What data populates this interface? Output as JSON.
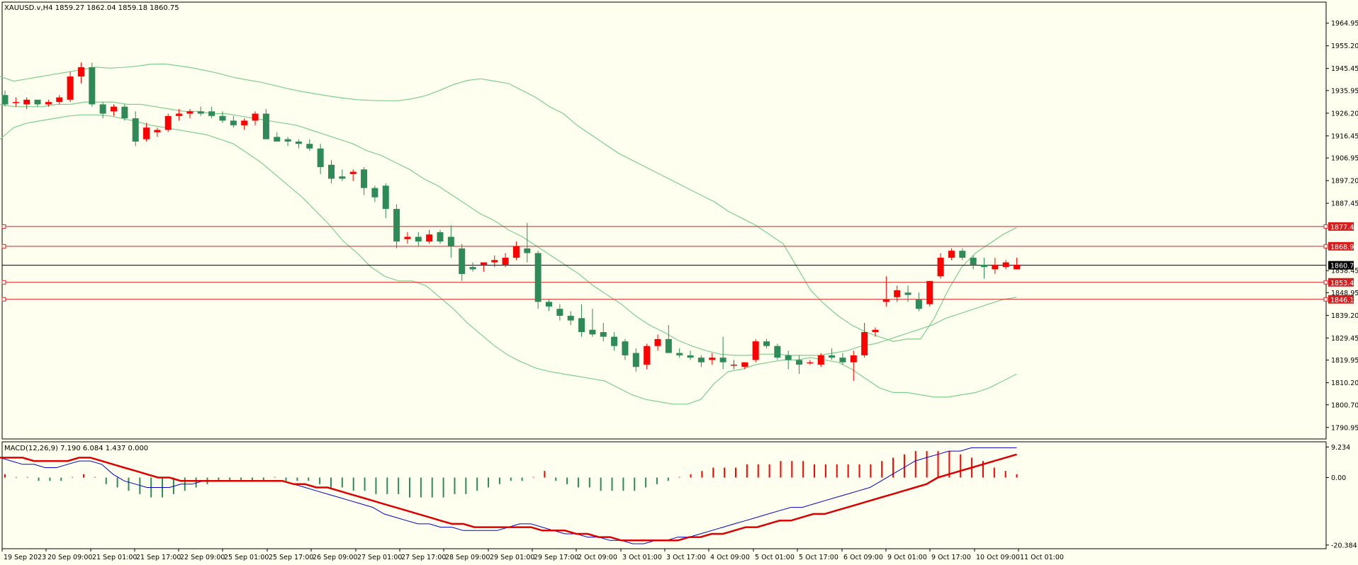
{
  "chart_data": [
    {
      "type": "candlestick",
      "title": "XAUUSD.v,H4  1859.27 1862.04 1859.18 1860.75",
      "ylim": [
        1786,
        1974
      ],
      "y_ticks": [
        "1964.95",
        "1955.20",
        "1945.45",
        "1935.95",
        "1926.20",
        "1916.45",
        "1906.95",
        "1897.20",
        "1887.45",
        "1858.45",
        "1848.95",
        "1839.20",
        "1829.45",
        "1819.95",
        "1810.20",
        "1800.70",
        "1790.95"
      ],
      "x_ticks": [
        "19 Sep 2023",
        "20 Sep 09:00",
        "21 Sep 01:00",
        "21 Sep 17:00",
        "22 Sep 09:00",
        "25 Sep 01:00",
        "25 Sep 17:00",
        "26 Sep 09:00",
        "27 Sep 01:00",
        "27 Sep 17:00",
        "28 Sep 09:00",
        "29 Sep 01:00",
        "29 Sep 17:00",
        "2 Oct 09:00",
        "3 Oct 01:00",
        "3 Oct 17:00",
        "4 Oct 09:00",
        "5 Oct 01:00",
        "5 Oct 17:00",
        "6 Oct 09:00",
        "9 Oct 01:00",
        "9 Oct 17:00",
        "10 Oct 09:00",
        "11 Oct 01:00"
      ],
      "current_price": "1860.75",
      "levels": [
        "1877.44",
        "1868.93",
        "1853.41",
        "1846.10"
      ],
      "colors": {
        "up": "#ff0000",
        "down": "#2e8b57",
        "bands": "#7ccf8e",
        "level": "#d62020",
        "price_line": "#000000"
      },
      "candles": [
        [
          1934,
          1936,
          1929,
          1930
        ],
        [
          1931,
          1933,
          1929,
          1931
        ],
        [
          1930,
          1933,
          1928,
          1932
        ],
        [
          1932,
          1932,
          1929,
          1930
        ],
        [
          1930,
          1932,
          1929,
          1931
        ],
        [
          1931,
          1934,
          1930,
          1933
        ],
        [
          1932,
          1944,
          1931,
          1942
        ],
        [
          1942,
          1948,
          1939,
          1946
        ],
        [
          1946,
          1948,
          1929,
          1930
        ],
        [
          1930,
          1931,
          1924,
          1926
        ],
        [
          1927,
          1930,
          1925,
          1929
        ],
        [
          1929,
          1930,
          1923,
          1924
        ],
        [
          1924,
          1927,
          1912,
          1914
        ],
        [
          1915,
          1922,
          1914,
          1920
        ],
        [
          1918,
          1920,
          1916,
          1919
        ],
        [
          1919,
          1926,
          1918,
          1925
        ],
        [
          1925,
          1928,
          1923,
          1926
        ],
        [
          1926,
          1928,
          1924,
          1927
        ],
        [
          1927,
          1929,
          1925,
          1926
        ],
        [
          1927,
          1929,
          1924,
          1925
        ],
        [
          1925,
          1927,
          1922,
          1923
        ],
        [
          1923,
          1925,
          1920,
          1921
        ],
        [
          1921,
          1924,
          1919,
          1923
        ],
        [
          1923,
          1927,
          1921,
          1926
        ],
        [
          1926,
          1928,
          1915,
          1915
        ],
        [
          1916,
          1918,
          1914,
          1914
        ],
        [
          1915,
          1916,
          1912,
          1914
        ],
        [
          1914,
          1915,
          1911,
          1913
        ],
        [
          1913,
          1915,
          1910,
          1911
        ],
        [
          1911,
          1913,
          1900,
          1903
        ],
        [
          1904,
          1906,
          1896,
          1898
        ],
        [
          1899,
          1902,
          1897,
          1898
        ],
        [
          1900,
          1902,
          1897,
          1901
        ],
        [
          1902,
          1903,
          1891,
          1894
        ],
        [
          1894,
          1895,
          1888,
          1890
        ],
        [
          1895,
          1896,
          1881,
          1885
        ],
        [
          1885,
          1887,
          1868,
          1871
        ],
        [
          1872,
          1875,
          1870,
          1873
        ],
        [
          1873,
          1875,
          1869,
          1871
        ],
        [
          1871,
          1876,
          1870,
          1874
        ],
        [
          1875,
          1876,
          1870,
          1871
        ],
        [
          1873,
          1878,
          1864,
          1869
        ],
        [
          1868,
          1870,
          1854,
          1857
        ],
        [
          1860,
          1862,
          1858,
          1859
        ],
        [
          1861,
          1862,
          1858,
          1862
        ],
        [
          1862,
          1865,
          1860,
          1863
        ],
        [
          1861,
          1866,
          1860,
          1864
        ],
        [
          1864,
          1871,
          1863,
          1869
        ],
        [
          1868,
          1879,
          1862,
          1866
        ],
        [
          1866,
          1867,
          1842,
          1845
        ],
        [
          1845,
          1846,
          1841,
          1843
        ],
        [
          1842,
          1844,
          1837,
          1839
        ],
        [
          1839,
          1841,
          1835,
          1837
        ],
        [
          1838,
          1844,
          1830,
          1832
        ],
        [
          1833,
          1842,
          1830,
          1831
        ],
        [
          1832,
          1836,
          1828,
          1830
        ],
        [
          1830,
          1832,
          1824,
          1826
        ],
        [
          1828,
          1829,
          1820,
          1822
        ],
        [
          1823,
          1825,
          1815,
          1817
        ],
        [
          1818,
          1827,
          1816,
          1826
        ],
        [
          1826,
          1831,
          1824,
          1829
        ],
        [
          1829,
          1835,
          1823,
          1823
        ],
        [
          1823,
          1825,
          1821,
          1822
        ],
        [
          1822,
          1824,
          1820,
          1821
        ],
        [
          1821,
          1822,
          1817,
          1819
        ],
        [
          1820,
          1823,
          1818,
          1821
        ],
        [
          1821,
          1830,
          1816,
          1819
        ],
        [
          1818,
          1820,
          1816,
          1818
        ],
        [
          1817,
          1819,
          1816,
          1819
        ],
        [
          1820,
          1829,
          1819,
          1828
        ],
        [
          1828,
          1829,
          1825,
          1826
        ],
        [
          1826,
          1827,
          1820,
          1821
        ],
        [
          1822,
          1824,
          1816,
          1820
        ],
        [
          1820,
          1822,
          1814,
          1818
        ],
        [
          1819,
          1820,
          1818,
          1819
        ],
        [
          1818,
          1823,
          1817,
          1822
        ],
        [
          1822,
          1825,
          1820,
          1821
        ],
        [
          1821,
          1823,
          1818,
          1819
        ],
        [
          1819,
          1824,
          1811,
          1822
        ],
        [
          1822,
          1836,
          1821,
          1832
        ],
        [
          1832,
          1834,
          1830,
          1833
        ],
        [
          1845,
          1856,
          1843,
          1846
        ],
        [
          1847,
          1852,
          1845,
          1850
        ],
        [
          1849,
          1852,
          1845,
          1848
        ],
        [
          1846,
          1849,
          1841,
          1842
        ],
        [
          1844,
          1854,
          1843,
          1854
        ],
        [
          1856,
          1866,
          1855,
          1864
        ],
        [
          1864,
          1868,
          1863,
          1867
        ],
        [
          1867,
          1868,
          1863,
          1864
        ],
        [
          1864,
          1865,
          1859,
          1861
        ],
        [
          1861,
          1864,
          1855,
          1860
        ],
        [
          1859,
          1864,
          1857,
          1861
        ],
        [
          1860,
          1863,
          1859,
          1862
        ],
        [
          1859,
          1864,
          1859,
          1861
        ]
      ],
      "bands": {
        "upper": [
          1942,
          1940,
          1941,
          1942,
          1943,
          1944,
          1945,
          1946,
          1945.6,
          1945.9,
          1946.5,
          1947.3,
          1947.4,
          1946.6,
          1945.7,
          1944.5,
          1943.2,
          1941.6,
          1940.5,
          1939.5,
          1938.1,
          1936.7,
          1935.5,
          1934.5,
          1933.5,
          1932.7,
          1932,
          1931.7,
          1931.6,
          1931.6,
          1932.4,
          1933.8,
          1936,
          1938.5,
          1940.3,
          1941,
          1940,
          1939,
          1936,
          1933,
          1929,
          1926,
          1921,
          1917,
          1913,
          1909,
          1906,
          1903,
          1900,
          1897,
          1894,
          1891,
          1888,
          1884,
          1881,
          1878,
          1874,
          1870,
          1860,
          1850,
          1844,
          1839,
          1835,
          1832,
          1830,
          1828,
          1829,
          1829,
          1838,
          1850,
          1860,
          1866,
          1870,
          1874,
          1877
        ],
        "middle": [
          1930,
          1929,
          1929,
          1929,
          1930,
          1930,
          1931,
          1931,
          1931,
          1930,
          1930,
          1929,
          1928,
          1927,
          1927,
          1926,
          1926,
          1925,
          1924,
          1923,
          1922,
          1921,
          1919,
          1917,
          1915,
          1913,
          1910,
          1908,
          1905,
          1902,
          1898,
          1895,
          1891,
          1887,
          1883,
          1880,
          1876,
          1873,
          1869,
          1865,
          1861,
          1857,
          1852,
          1848,
          1844,
          1839,
          1835,
          1832,
          1828.5,
          1826,
          1824,
          1822.5,
          1822,
          1822,
          1822.5,
          1822.5,
          1822,
          1822,
          1822,
          1823,
          1824,
          1826,
          1827,
          1829,
          1831,
          1833,
          1835,
          1838,
          1840,
          1842,
          1844,
          1846,
          1847
        ],
        "lower": [
          1915,
          1920,
          1922,
          1923,
          1924,
          1925,
          1925.5,
          1925.5,
          1925,
          1923.8,
          1922.5,
          1921,
          1920,
          1919,
          1918,
          1917,
          1915,
          1913,
          1909,
          1905,
          1900,
          1895,
          1890,
          1884,
          1878,
          1871,
          1866,
          1860,
          1856,
          1854,
          1854,
          1852,
          1847,
          1842,
          1836,
          1831,
          1826,
          1822,
          1819,
          1816.5,
          1815,
          1814,
          1813,
          1812,
          1811,
          1808,
          1805,
          1803,
          1802,
          1801,
          1801,
          1803,
          1810,
          1815,
          1816,
          1818,
          1819,
          1820,
          1820,
          1821,
          1820,
          1819,
          1816,
          1812,
          1808,
          1806,
          1806,
          1805,
          1804,
          1804,
          1805,
          1806,
          1808,
          1811,
          1814
        ]
      }
    },
    {
      "type": "macd",
      "title": "MACD(12,26,9) 7.190 6.084 1.437 0.000",
      "ylim": [
        -21.5,
        10.8
      ],
      "y_ticks": [
        "9.234",
        "0.00",
        "-20.384"
      ],
      "histogram": [
        1,
        0,
        0,
        -1,
        -1,
        -1,
        0,
        1,
        0,
        -2,
        -3,
        -4,
        -5,
        -6,
        -6,
        -5,
        -4,
        -3,
        -2,
        -1,
        -1,
        -1,
        -1,
        -1,
        0,
        -1,
        -1,
        -1,
        -2,
        -3,
        -3,
        -4,
        -4,
        -5,
        -5,
        -5,
        -6,
        -6,
        -6,
        -6,
        -5,
        -5,
        -4,
        -3,
        -2,
        -1,
        -1,
        0,
        2,
        -1,
        -2,
        -3,
        -3,
        -4,
        -4,
        -4,
        -4,
        -3,
        -2,
        -1,
        0,
        1,
        2,
        3,
        3,
        3,
        4,
        4,
        4,
        5,
        5,
        5,
        4,
        4,
        4,
        4,
        4,
        4,
        5,
        6,
        7,
        8,
        8,
        8,
        8,
        7,
        6,
        5,
        3,
        2,
        1
      ],
      "macd_line": [
        6,
        5,
        4,
        4,
        3,
        3,
        4,
        5,
        5,
        4,
        1,
        -1,
        -2,
        -3,
        -3,
        -3,
        -2,
        -2,
        -1,
        -1,
        -1,
        -1,
        -1,
        -1,
        -1,
        -1,
        -2,
        -3,
        -4,
        -5,
        -6,
        -7,
        -8,
        -9,
        -11,
        -12,
        -13,
        -14,
        -14,
        -15,
        -15,
        -16,
        -16,
        -16,
        -16,
        -15,
        -14,
        -14,
        -15,
        -16,
        -17,
        -17,
        -18,
        -18,
        -19,
        -19,
        -20,
        -20,
        -19,
        -19,
        -18,
        -18,
        -17,
        -16,
        -15,
        -14,
        -13,
        -12,
        -11,
        -10,
        -9,
        -9,
        -8,
        -7,
        -6,
        -5,
        -4,
        -3,
        -1,
        1,
        3,
        5,
        6,
        7,
        8,
        8,
        9,
        9,
        9,
        9,
        9
      ],
      "signal_line": [
        6,
        6,
        6,
        5,
        5,
        5,
        5,
        6,
        6,
        5,
        4,
        3,
        2,
        1,
        0,
        0,
        -1,
        -1,
        -1,
        -1,
        -1,
        -1,
        -1,
        -1,
        -1,
        -1,
        -2,
        -2,
        -3,
        -3,
        -4,
        -5,
        -6,
        -7,
        -8,
        -9,
        -10,
        -11,
        -12,
        -13,
        -14,
        -14,
        -15,
        -15,
        -15,
        -15,
        -15,
        -15,
        -16,
        -16,
        -16,
        -17,
        -17,
        -18,
        -18,
        -19,
        -19,
        -19,
        -19,
        -19,
        -19,
        -18,
        -18,
        -17,
        -17,
        -16,
        -15,
        -15,
        -14,
        -13,
        -13,
        -12,
        -11,
        -11,
        -10,
        -9,
        -8,
        -7,
        -6,
        -5,
        -4,
        -3,
        -2,
        0,
        1,
        2,
        3,
        4,
        5,
        6,
        7
      ],
      "colors": {
        "hist_up": "#ff0000",
        "hist_down": "#2e8b57",
        "macd": "#0000cc",
        "signal": "#dd0000"
      }
    }
  ]
}
